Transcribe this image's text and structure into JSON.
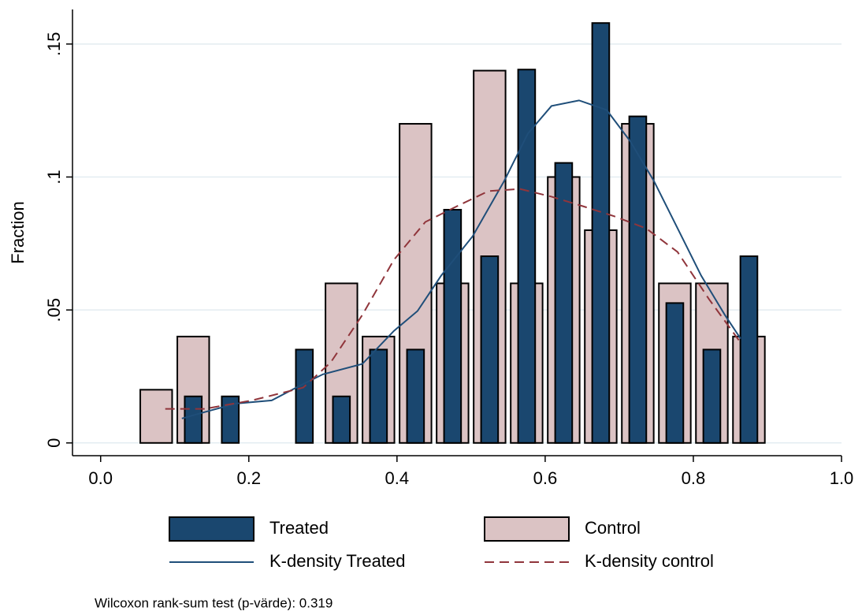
{
  "chart_data": {
    "type": "bar",
    "y_label": "Fraction",
    "note": "Wilcoxon rank-sum test (p-värde): 0.319",
    "xlim": [
      -0.038,
      1.0
    ],
    "ylim": [
      -0.0048,
      0.163
    ],
    "xticks": [
      {
        "value": 0,
        "label": "0.0"
      },
      0.2,
      0.4,
      0.6,
      0.8,
      {
        "value": 1,
        "label": "1.0"
      }
    ],
    "yticks": [
      {
        "value": 0,
        "label": "0"
      },
      {
        "value": 0.05,
        "label": ".05"
      },
      {
        "value": 0.1,
        "label": ".1"
      },
      {
        "value": 0.15,
        "label": ".15"
      }
    ],
    "grid": true,
    "legend": "bottom",
    "series": [
      {
        "name": "Control",
        "type": "bar",
        "color": "#dbc3c4",
        "x": [
          0.075,
          0.125,
          0.325,
          0.375,
          0.425,
          0.475,
          0.525,
          0.575,
          0.625,
          0.675,
          0.725,
          0.775,
          0.825,
          0.875
        ],
        "values": [
          0.02,
          0.04,
          0.06,
          0.04,
          0.12,
          0.06,
          0.14,
          0.06,
          0.1,
          0.08,
          0.12,
          0.06,
          0.06,
          0.04
        ]
      },
      {
        "name": "Treated",
        "type": "bar",
        "color": "#1a476f",
        "x": [
          0.125,
          0.175,
          0.275,
          0.325,
          0.375,
          0.425,
          0.475,
          0.525,
          0.575,
          0.625,
          0.675,
          0.725,
          0.775,
          0.825,
          0.875
        ],
        "values": [
          0.0175,
          0.0175,
          0.0351,
          0.0175,
          0.0351,
          0.0351,
          0.0877,
          0.0702,
          0.1404,
          0.1053,
          0.1579,
          0.1228,
          0.0526,
          0.0351,
          0.0702
        ]
      },
      {
        "name": "K-density Treated",
        "type": "line",
        "color": "#1f4e79",
        "dash": "solid",
        "x": [
          0.1096,
          0.1404,
          0.183,
          0.2309,
          0.2681,
          0.3,
          0.3532,
          0.3957,
          0.4277,
          0.4596,
          0.5021,
          0.5447,
          0.5766,
          0.6085,
          0.6457,
          0.683,
          0.7149,
          0.7468,
          0.7787,
          0.8106,
          0.8426,
          0.8638
        ],
        "values": [
          0.0092,
          0.0116,
          0.0148,
          0.016,
          0.0214,
          0.0258,
          0.0297,
          0.0421,
          0.0496,
          0.0629,
          0.0777,
          0.0985,
          0.1163,
          0.1267,
          0.1288,
          0.1252,
          0.1134,
          0.0985,
          0.0807,
          0.0629,
          0.0481,
          0.0392
        ]
      },
      {
        "name": "K-density control",
        "type": "line",
        "color": "#90353b",
        "dash": "dashed",
        "x": [
          0.0872,
          0.1404,
          0.2043,
          0.2734,
          0.3106,
          0.3532,
          0.3957,
          0.4383,
          0.4809,
          0.5234,
          0.566,
          0.6085,
          0.6511,
          0.6936,
          0.7362,
          0.7787,
          0.8213,
          0.8638
        ],
        "values": [
          0.0128,
          0.0128,
          0.016,
          0.0208,
          0.0303,
          0.0481,
          0.0688,
          0.0831,
          0.089,
          0.0947,
          0.0955,
          0.0926,
          0.089,
          0.0852,
          0.0807,
          0.0718,
          0.054,
          0.0377
        ]
      }
    ]
  }
}
